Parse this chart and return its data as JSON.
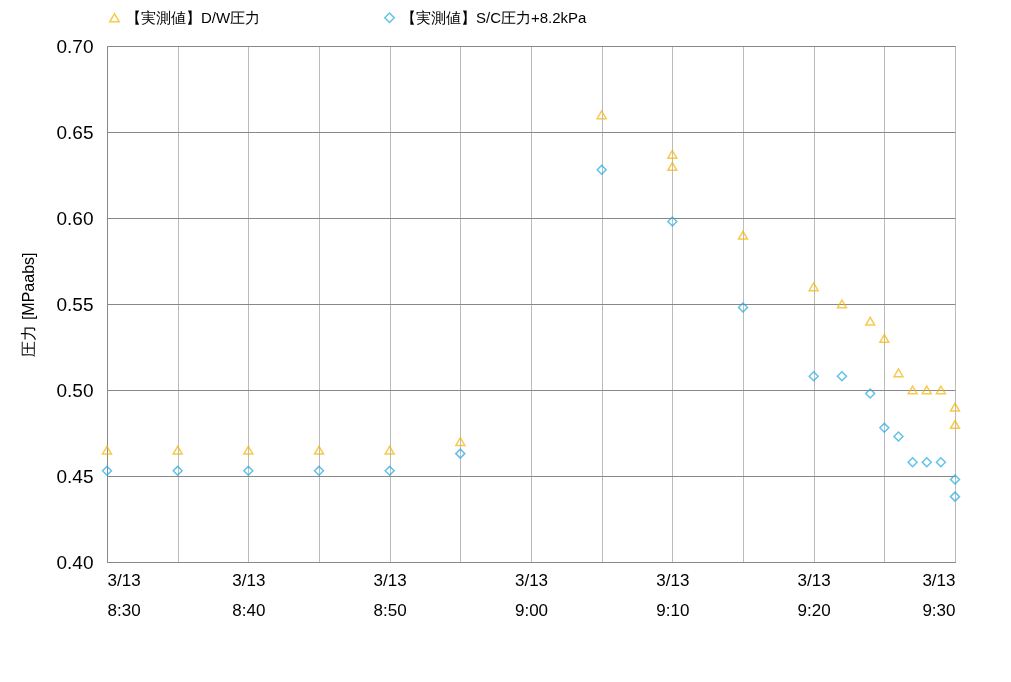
{
  "chart_data": {
    "type": "scatter",
    "ylabel": "圧力 [MPaabs]",
    "legend": "top",
    "grid": true,
    "xlim": [
      "--03-13T08:30",
      "--03-13T09:30"
    ],
    "xticks": [
      {
        "value": "--03-13T08:30",
        "label": "3/13\n8:30"
      },
      {
        "value": "--03-13T08:35",
        "label": null
      },
      {
        "value": "--03-13T08:40",
        "label": "3/13\n8:40"
      },
      {
        "value": "--03-13T08:45",
        "label": null
      },
      {
        "value": "--03-13T08:50",
        "label": "3/13\n8:50"
      },
      {
        "value": "--03-13T08:55",
        "label": null
      },
      {
        "value": "--03-13T09:00",
        "label": "3/13\n9:00"
      },
      {
        "value": "--03-13T09:05",
        "label": null
      },
      {
        "value": "--03-13T09:10",
        "label": "3/13\n9:10"
      },
      {
        "value": "--03-13T09:15",
        "label": null
      },
      {
        "value": "--03-13T09:20",
        "label": "3/13\n9:20"
      },
      {
        "value": "--03-13T09:25",
        "label": null
      },
      {
        "value": "--03-13T09:30",
        "label": "3/13\n9:30"
      }
    ],
    "ylim": [
      0.4,
      0.7
    ],
    "yticks": [
      {
        "value": 0.4,
        "label": "0.40"
      },
      {
        "value": 0.45,
        "label": "0.45"
      },
      {
        "value": 0.5,
        "label": "0.50"
      },
      {
        "value": 0.55,
        "label": "0.55"
      },
      {
        "value": 0.6,
        "label": "0.60"
      },
      {
        "value": 0.65,
        "label": "0.65"
      },
      {
        "value": 0.7,
        "label": "0.70"
      }
    ],
    "series": [
      {
        "name": "【実測値】D/W圧力",
        "color": "#f5b400",
        "marker": "triangle",
        "x": [
          "--03-13T08:30",
          "--03-13T08:35",
          "--03-13T08:40",
          "--03-13T08:45",
          "--03-13T08:50",
          "--03-13T08:55",
          "--03-13T09:05",
          "--03-13T09:10",
          "--03-13T09:10",
          "--03-13T09:15",
          "--03-13T09:20",
          "--03-13T09:22",
          "--03-13T09:24",
          "--03-13T09:25",
          "--03-13T09:26",
          "--03-13T09:27",
          "--03-13T09:28",
          "--03-13T09:29",
          "--03-13T09:30",
          "--03-13T09:30"
        ],
        "values": [
          0.465,
          0.465,
          0.465,
          0.465,
          0.465,
          0.47,
          0.66,
          0.637,
          0.63,
          0.59,
          0.56,
          0.55,
          0.54,
          0.53,
          0.51,
          0.5,
          0.5,
          0.5,
          0.49,
          0.48
        ]
      },
      {
        "name": "【実測値】S/C圧力+8.2kPa",
        "color": "#1fa8e0",
        "marker": "diamond",
        "x": [
          "--03-13T08:30",
          "--03-13T08:35",
          "--03-13T08:40",
          "--03-13T08:45",
          "--03-13T08:50",
          "--03-13T08:55",
          "--03-13T09:05",
          "--03-13T09:10",
          "--03-13T09:15",
          "--03-13T09:20",
          "--03-13T09:22",
          "--03-13T09:24",
          "--03-13T09:25",
          "--03-13T09:26",
          "--03-13T09:27",
          "--03-13T09:28",
          "--03-13T09:29",
          "--03-13T09:30",
          "--03-13T09:30"
        ],
        "values": [
          0.453,
          0.453,
          0.453,
          0.453,
          0.453,
          0.463,
          0.628,
          0.598,
          0.548,
          0.508,
          0.508,
          0.498,
          0.478,
          0.473,
          0.458,
          0.458,
          0.458,
          0.448,
          0.438
        ]
      }
    ]
  }
}
